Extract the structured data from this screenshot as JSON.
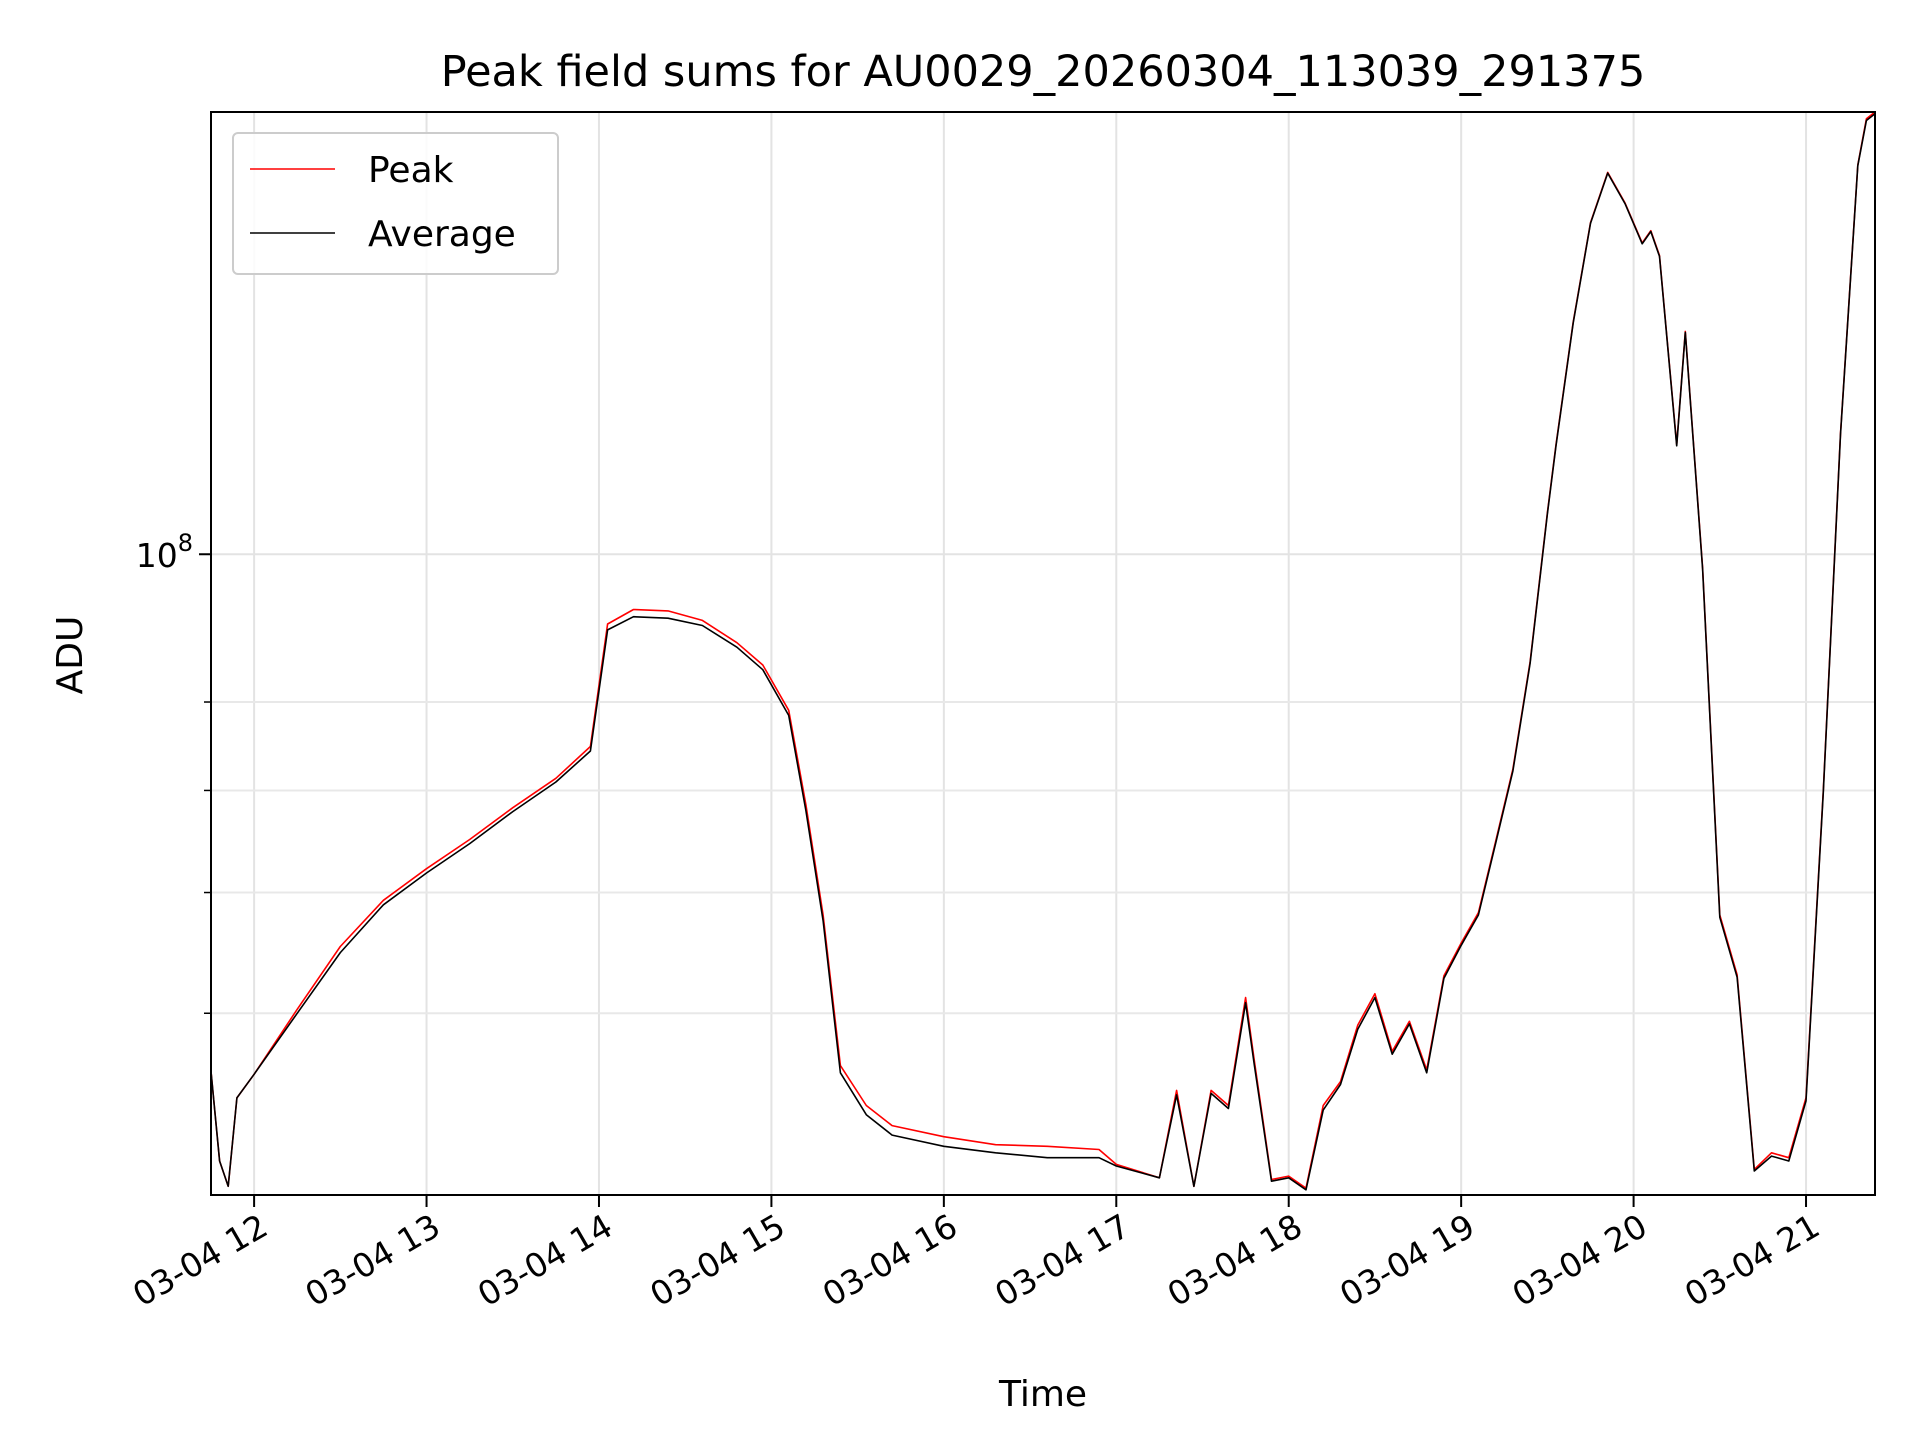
{
  "chart_data": {
    "type": "line",
    "title": "Peak field sums for AU0029_20260304_113039_291375",
    "xlabel": "Time",
    "ylabel": "ADU",
    "y_scale": "log",
    "ylim": [
      38000000,
      195000000
    ],
    "xlim_hours": [
      11.75,
      21.4
    ],
    "x_ticks": [
      {
        "hour": 12,
        "label": "03-04 12"
      },
      {
        "hour": 13,
        "label": "03-04 13"
      },
      {
        "hour": 14,
        "label": "03-04 14"
      },
      {
        "hour": 15,
        "label": "03-04 15"
      },
      {
        "hour": 16,
        "label": "03-04 16"
      },
      {
        "hour": 17,
        "label": "03-04 17"
      },
      {
        "hour": 18,
        "label": "03-04 18"
      },
      {
        "hour": 19,
        "label": "03-04 19"
      },
      {
        "hour": 20,
        "label": "03-04 20"
      },
      {
        "hour": 21,
        "label": "03-04 21"
      }
    ],
    "y_major_ticks": [
      {
        "value": 100000000,
        "label_base": "10",
        "label_exp": "8"
      }
    ],
    "y_minor_ticks": [
      50000000,
      60000000,
      70000000,
      80000000
    ],
    "grid": true,
    "legend_position": "upper-left",
    "x_hours": [
      11.75,
      11.8,
      11.85,
      11.9,
      12.0,
      12.25,
      12.5,
      12.75,
      13.0,
      13.25,
      13.5,
      13.75,
      13.95,
      14.05,
      14.2,
      14.4,
      14.6,
      14.8,
      14.95,
      15.1,
      15.2,
      15.3,
      15.4,
      15.55,
      15.7,
      16.0,
      16.3,
      16.6,
      16.9,
      17.0,
      17.25,
      17.35,
      17.45,
      17.55,
      17.65,
      17.75,
      17.8,
      17.9,
      18.0,
      18.1,
      18.2,
      18.3,
      18.4,
      18.5,
      18.6,
      18.7,
      18.8,
      18.9,
      19.0,
      19.1,
      19.2,
      19.3,
      19.4,
      19.5,
      19.55,
      19.65,
      19.75,
      19.85,
      19.95,
      20.05,
      20.1,
      20.15,
      20.25,
      20.3,
      20.4,
      20.5,
      20.6,
      20.7,
      20.8,
      20.9,
      21.0,
      21.1,
      21.2,
      21.3,
      21.35,
      21.4
    ],
    "series": [
      {
        "name": "Peak",
        "color": "#ff0000",
        "values": [
          45800000,
          40000000,
          38500000,
          44000000,
          45600000,
          50300000,
          55300000,
          59300000,
          62200000,
          65000000,
          68200000,
          71300000,
          74800000,
          90000000,
          92000000,
          91800000,
          90500000,
          87500000,
          84600000,
          79000000,
          68500000,
          58000000,
          46200000,
          43500000,
          42200000,
          41500000,
          41000000,
          40900000,
          40700000,
          39800000,
          39000000,
          44500000,
          38500000,
          44500000,
          43500000,
          51200000,
          46600000,
          38900000,
          39100000,
          38400000,
          43500000,
          45100000,
          49100000,
          51500000,
          47200000,
          49400000,
          45900000,
          52900000,
          55600000,
          58200000,
          64800000,
          72300000,
          85000000,
          106500000,
          118000000,
          142000000,
          165000000,
          178000000,
          170000000,
          160000000,
          163000000,
          157000000,
          118000000,
          140000000,
          98000000,
          58000000,
          53000000,
          39500000,
          40500000,
          40200000,
          44000000,
          70000000,
          120000000,
          180000000,
          193000000,
          195000000
        ]
      },
      {
        "name": "Average",
        "color": "#000000",
        "values": [
          45800000,
          40000000,
          38500000,
          44000000,
          45600000,
          50000000,
          54800000,
          58900000,
          61800000,
          64600000,
          67800000,
          70900000,
          74300000,
          89200000,
          91000000,
          90800000,
          89800000,
          86900000,
          84000000,
          78400000,
          67900000,
          57500000,
          45700000,
          42900000,
          41600000,
          40900000,
          40500000,
          40200000,
          40200000,
          39700000,
          39000000,
          44200000,
          38500000,
          44300000,
          43300000,
          50800000,
          46300000,
          38800000,
          39000000,
          38300000,
          43200000,
          44900000,
          48800000,
          51200000,
          47000000,
          49200000,
          45700000,
          52700000,
          55400000,
          58000000,
          64600000,
          72100000,
          84800000,
          106300000,
          117800000,
          141800000,
          164800000,
          177800000,
          169800000,
          159800000,
          162800000,
          156800000,
          117800000,
          139800000,
          97800000,
          57800000,
          52800000,
          39400000,
          40300000,
          40000000,
          43800000,
          69800000,
          119800000,
          179800000,
          192500000,
          194500000
        ]
      }
    ]
  }
}
